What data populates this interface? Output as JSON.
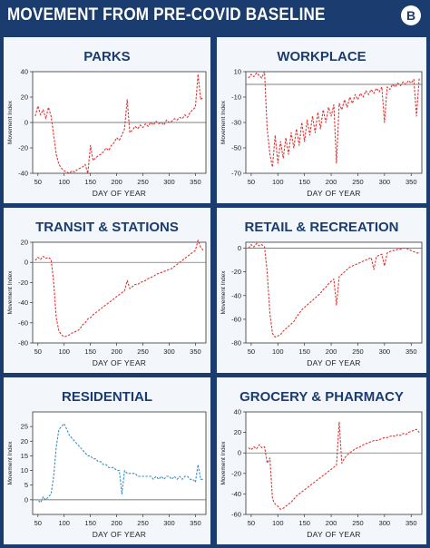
{
  "header": {
    "title": "MOVEMENT FROM PRE-COVID BASELINE",
    "logo_letter": "B"
  },
  "colors": {
    "background": "#1a3c6e",
    "panel": "#f3f7fb",
    "red_series": "#e03535",
    "blue_series": "#3a8fc7",
    "title": "#1a3c6e"
  },
  "chart_data": [
    {
      "type": "line",
      "title": "PARKS",
      "xlabel": "DAY OF YEAR",
      "ylabel": "Movement Index",
      "xlim": [
        40,
        370
      ],
      "ylim": [
        -40,
        40
      ],
      "xticks": [
        50,
        100,
        150,
        200,
        250,
        300,
        350
      ],
      "yticks": [
        -40,
        -20,
        0,
        20,
        40
      ],
      "grid": false,
      "color": "#e03535",
      "style": "dashed",
      "x": [
        45,
        50,
        55,
        60,
        65,
        70,
        75,
        80,
        85,
        90,
        95,
        100,
        105,
        110,
        115,
        120,
        125,
        130,
        135,
        140,
        145,
        150,
        155,
        160,
        165,
        170,
        175,
        180,
        185,
        190,
        195,
        200,
        205,
        210,
        215,
        220,
        225,
        230,
        235,
        240,
        245,
        250,
        255,
        260,
        265,
        270,
        275,
        280,
        285,
        290,
        295,
        300,
        305,
        310,
        315,
        320,
        325,
        330,
        335,
        340,
        345,
        350,
        355,
        360,
        365
      ],
      "values": [
        5,
        13,
        6,
        10,
        3,
        12,
        5,
        -10,
        -25,
        -33,
        -36,
        -38,
        -39,
        -40,
        -38,
        -39,
        -37,
        -36,
        -35,
        -33,
        -40,
        -18,
        -30,
        -28,
        -26,
        -25,
        -23,
        -20,
        -22,
        -18,
        -16,
        -12,
        -14,
        -10,
        -5,
        18,
        -8,
        -6,
        -3,
        -5,
        -2,
        -4,
        -1,
        -3,
        0,
        -2,
        1,
        -1,
        0,
        -2,
        2,
        0,
        1,
        3,
        2,
        4,
        3,
        6,
        4,
        8,
        10,
        12,
        38,
        18,
        20
      ]
    },
    {
      "type": "line",
      "title": "WORKPLACE",
      "xlabel": "DAY OF YEAR",
      "ylabel": "Movement Index",
      "xlim": [
        40,
        370
      ],
      "ylim": [
        -70,
        10
      ],
      "xticks": [
        50,
        100,
        150,
        200,
        250,
        300,
        350
      ],
      "yticks": [
        -70,
        -50,
        -30,
        -10,
        10
      ],
      "grid": false,
      "color": "#e03535",
      "style": "dashed",
      "x": [
        45,
        50,
        55,
        60,
        65,
        70,
        75,
        80,
        85,
        90,
        95,
        100,
        105,
        110,
        115,
        120,
        125,
        130,
        135,
        140,
        145,
        150,
        155,
        160,
        165,
        170,
        175,
        180,
        185,
        190,
        195,
        200,
        205,
        210,
        215,
        220,
        225,
        230,
        235,
        240,
        245,
        250,
        255,
        260,
        265,
        270,
        275,
        280,
        285,
        290,
        295,
        300,
        305,
        310,
        315,
        320,
        325,
        330,
        335,
        340,
        345,
        350,
        355,
        360,
        365
      ],
      "values": [
        5,
        8,
        6,
        9,
        7,
        5,
        10,
        -35,
        -55,
        -65,
        -40,
        -62,
        -45,
        -58,
        -42,
        -55,
        -38,
        -50,
        -35,
        -48,
        -30,
        -45,
        -28,
        -40,
        -25,
        -38,
        -22,
        -35,
        -20,
        -30,
        -18,
        -25,
        -16,
        -62,
        -15,
        -20,
        -12,
        -18,
        -10,
        -15,
        -8,
        -12,
        -7,
        -10,
        -5,
        -8,
        -4,
        -7,
        -3,
        -6,
        -2,
        -30,
        -2,
        -4,
        0,
        -2,
        1,
        -1,
        2,
        0,
        3,
        1,
        4,
        -25,
        5
      ]
    },
    {
      "type": "line",
      "title": "TRANSIT & STATIONS",
      "xlabel": "DAY OF YEAR",
      "ylabel": "Movement Index",
      "xlim": [
        40,
        370
      ],
      "ylim": [
        -80,
        20
      ],
      "xticks": [
        50,
        100,
        150,
        200,
        250,
        300,
        350
      ],
      "yticks": [
        -80,
        -60,
        -40,
        -20,
        0,
        20
      ],
      "grid": false,
      "color": "#e03535",
      "style": "dashed",
      "x": [
        45,
        50,
        55,
        60,
        65,
        70,
        75,
        80,
        85,
        90,
        95,
        100,
        105,
        110,
        115,
        120,
        125,
        130,
        135,
        140,
        145,
        150,
        155,
        160,
        165,
        170,
        175,
        180,
        185,
        190,
        195,
        200,
        205,
        210,
        215,
        220,
        225,
        230,
        235,
        240,
        245,
        250,
        255,
        260,
        265,
        270,
        275,
        280,
        285,
        290,
        295,
        300,
        305,
        310,
        315,
        320,
        325,
        330,
        335,
        340,
        345,
        350,
        355,
        360,
        365
      ],
      "values": [
        2,
        5,
        3,
        6,
        4,
        5,
        3,
        -20,
        -55,
        -68,
        -72,
        -74,
        -73,
        -72,
        -70,
        -69,
        -68,
        -66,
        -62,
        -60,
        -56,
        -55,
        -52,
        -50,
        -48,
        -46,
        -44,
        -42,
        -40,
        -38,
        -36,
        -34,
        -32,
        -30,
        -28,
        -18,
        -26,
        -24,
        -22,
        -22,
        -20,
        -19,
        -18,
        -16,
        -15,
        -14,
        -12,
        -11,
        -10,
        -9,
        -8,
        -7,
        -6,
        -4,
        -2,
        0,
        2,
        4,
        6,
        8,
        10,
        12,
        22,
        15,
        12
      ]
    },
    {
      "type": "line",
      "title": "RETAIL & RECREATION",
      "xlabel": "DAY OF YEAR",
      "ylabel": "Movement Index",
      "xlim": [
        40,
        370
      ],
      "ylim": [
        -80,
        5
      ],
      "xticks": [
        50,
        100,
        150,
        200,
        250,
        300,
        350
      ],
      "yticks": [
        -80,
        -60,
        -40,
        -20,
        0
      ],
      "grid": false,
      "color": "#e03535",
      "style": "dashed",
      "x": [
        45,
        50,
        55,
        60,
        65,
        70,
        75,
        80,
        85,
        90,
        95,
        100,
        105,
        110,
        115,
        120,
        125,
        130,
        135,
        140,
        145,
        150,
        155,
        160,
        165,
        170,
        175,
        180,
        185,
        190,
        195,
        200,
        205,
        210,
        215,
        220,
        225,
        230,
        235,
        240,
        245,
        250,
        255,
        260,
        265,
        270,
        275,
        280,
        285,
        290,
        295,
        300,
        305,
        310,
        315,
        320,
        325,
        330,
        335,
        340,
        345,
        350,
        355,
        360,
        365
      ],
      "values": [
        0,
        3,
        1,
        4,
        2,
        3,
        1,
        -20,
        -55,
        -72,
        -75,
        -74,
        -73,
        -70,
        -68,
        -66,
        -64,
        -62,
        -58,
        -55,
        -52,
        -50,
        -48,
        -46,
        -44,
        -42,
        -40,
        -38,
        -35,
        -33,
        -30,
        -28,
        -26,
        -48,
        -24,
        -22,
        -20,
        -18,
        -16,
        -15,
        -14,
        -13,
        -12,
        -11,
        -10,
        -9,
        -8,
        -18,
        -7,
        -6,
        -5,
        -15,
        -4,
        -3,
        -2,
        -2,
        -1,
        -1,
        0,
        0,
        -1,
        -2,
        -3,
        -4,
        -4
      ]
    },
    {
      "type": "line",
      "title": "RESIDENTIAL",
      "xlabel": "DAY OF YEAR",
      "ylabel": "Movement Index",
      "xlim": [
        40,
        370
      ],
      "ylim": [
        -5,
        30
      ],
      "xticks": [
        50,
        100,
        150,
        200,
        250,
        300,
        350
      ],
      "yticks": [
        0,
        5,
        10,
        15,
        20,
        25
      ],
      "grid": false,
      "color": "#3a8fc7",
      "style": "dashed",
      "x": [
        45,
        50,
        55,
        60,
        65,
        70,
        75,
        80,
        85,
        90,
        95,
        100,
        105,
        110,
        115,
        120,
        125,
        130,
        135,
        140,
        145,
        150,
        155,
        160,
        165,
        170,
        175,
        180,
        185,
        190,
        195,
        200,
        205,
        210,
        215,
        220,
        225,
        230,
        235,
        240,
        245,
        250,
        255,
        260,
        265,
        270,
        275,
        280,
        285,
        290,
        295,
        300,
        305,
        310,
        315,
        320,
        325,
        330,
        335,
        340,
        345,
        350,
        355,
        360,
        365
      ],
      "values": [
        0,
        0,
        -1,
        1,
        0,
        1,
        2,
        8,
        18,
        24,
        25,
        26,
        24,
        22,
        21,
        20,
        19,
        18,
        17,
        16,
        15,
        15,
        14,
        14,
        13,
        13,
        12,
        12,
        11,
        11,
        11,
        10,
        10,
        2,
        10,
        9,
        9,
        9,
        9,
        8,
        8,
        8,
        8,
        8,
        8,
        7,
        8,
        7,
        8,
        7,
        8,
        8,
        7,
        8,
        7,
        8,
        7,
        8,
        8,
        7,
        7,
        6,
        12,
        7,
        7
      ]
    },
    {
      "type": "line",
      "title": "GROCERY & PHARMACY",
      "xlabel": "DAY OF YEAR",
      "ylabel": "Movement Index",
      "xlim": [
        40,
        370
      ],
      "ylim": [
        -60,
        40
      ],
      "xticks": [
        50,
        100,
        150,
        200,
        250,
        300,
        350
      ],
      "yticks": [
        -60,
        -40,
        -20,
        0,
        20,
        40
      ],
      "grid": false,
      "color": "#e03535",
      "style": "dashed",
      "x": [
        45,
        50,
        55,
        60,
        65,
        70,
        75,
        80,
        85,
        90,
        95,
        100,
        105,
        110,
        115,
        120,
        125,
        130,
        135,
        140,
        145,
        150,
        155,
        160,
        165,
        170,
        175,
        180,
        185,
        190,
        195,
        200,
        205,
        210,
        215,
        220,
        225,
        230,
        235,
        240,
        245,
        250,
        255,
        260,
        265,
        270,
        275,
        280,
        285,
        290,
        295,
        300,
        305,
        310,
        315,
        320,
        325,
        330,
        335,
        340,
        345,
        350,
        355,
        360,
        365
      ],
      "values": [
        5,
        3,
        6,
        4,
        8,
        5,
        6,
        -10,
        -5,
        -45,
        -50,
        -52,
        -55,
        -54,
        -52,
        -50,
        -48,
        -45,
        -42,
        -40,
        -38,
        -36,
        -34,
        -32,
        -30,
        -28,
        -26,
        -24,
        -22,
        -20,
        -18,
        -16,
        -14,
        -12,
        30,
        -10,
        -5,
        -2,
        0,
        2,
        4,
        5,
        6,
        8,
        9,
        10,
        11,
        12,
        12,
        13,
        14,
        15,
        15,
        16,
        17,
        16,
        18,
        17,
        19,
        18,
        20,
        21,
        22,
        23,
        20
      ]
    }
  ]
}
